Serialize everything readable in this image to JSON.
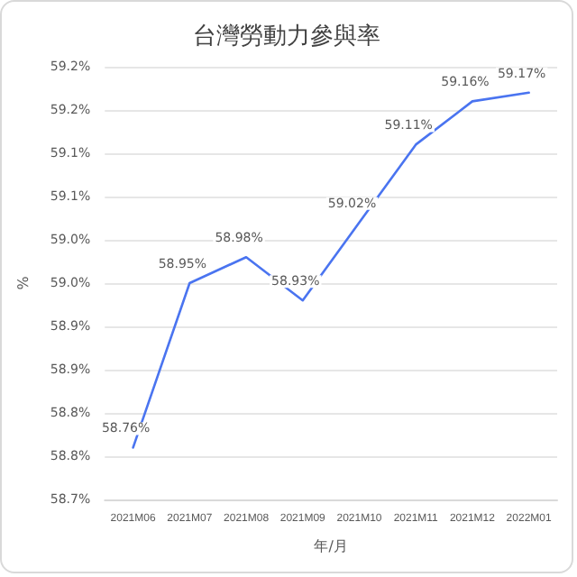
{
  "chart_data": {
    "type": "line",
    "title": "台灣勞動力參與率",
    "xlabel": "年/月",
    "ylabel": "%",
    "categories": [
      "2021M06",
      "2021M07",
      "2021M08",
      "2021M09",
      "2021M10",
      "2021M11",
      "2021M12",
      "2022M01"
    ],
    "series": [
      {
        "color": "#4a74f0",
        "values": [
          58.76,
          58.95,
          58.98,
          58.93,
          59.02,
          59.11,
          59.16,
          59.17
        ]
      }
    ],
    "value_labels": [
      "58.76%",
      "58.95%",
      "58.98%",
      "58.93%",
      "59.02%",
      "59.11%",
      "59.16%",
      "59.17%"
    ],
    "ylim": [
      58.7,
      59.2
    ],
    "yticks": [
      {
        "value": 58.7,
        "label": "58.7%"
      },
      {
        "value": 58.75,
        "label": "58.8%"
      },
      {
        "value": 58.8,
        "label": "58.8%"
      },
      {
        "value": 58.85,
        "label": "58.9%"
      },
      {
        "value": 58.9,
        "label": "58.9%"
      },
      {
        "value": 58.95,
        "label": "59.0%"
      },
      {
        "value": 59.0,
        "label": "59.0%"
      },
      {
        "value": 59.05,
        "label": "59.1%"
      },
      {
        "value": 59.1,
        "label": "59.1%"
      },
      {
        "value": 59.15,
        "label": "59.2%"
      },
      {
        "value": 59.2,
        "label": "59.2%"
      }
    ],
    "grid": "y",
    "marker": "none",
    "line_style": "solid"
  }
}
